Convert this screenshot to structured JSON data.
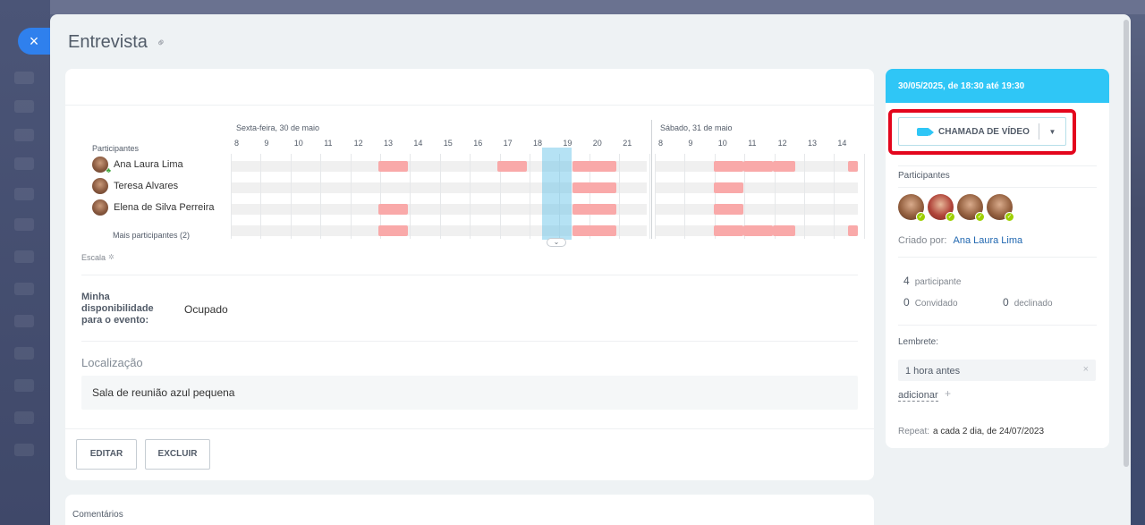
{
  "window": {
    "close_icon": "×"
  },
  "header": {
    "title": "Entrevista",
    "link_icon": "link-icon"
  },
  "planner": {
    "participants_label": "Participantes",
    "days": [
      {
        "label": "Sexta-feira, 30 de maio",
        "hours": [
          "8",
          "9",
          "10",
          "11",
          "12",
          "13",
          "14",
          "15",
          "16",
          "17",
          "18",
          "19",
          "20",
          "21"
        ]
      },
      {
        "label": "Sábado, 31 de maio",
        "hours": [
          "8",
          "9",
          "10",
          "11",
          "12",
          "13",
          "14"
        ]
      }
    ],
    "participants": [
      {
        "name": "Ana Laura Lima"
      },
      {
        "name": "Teresa Alvares"
      },
      {
        "name": "Elena de Silva Perreira"
      }
    ],
    "more_participants": "Mais participantes (2)",
    "scale_label": "Escala"
  },
  "availability": {
    "label": "Minha disponibilidade para o evento:",
    "value": "Ocupado"
  },
  "location": {
    "label": "Localização",
    "value": "Sala de reunião azul pequena"
  },
  "actions": {
    "edit": "EDITAR",
    "delete": "EXCLUIR"
  },
  "comments": {
    "label": "Comentários"
  },
  "sidebar": {
    "datetime": "30/05/2025, de 18:30 até 19:30",
    "video_call": "CHAMADA DE VÍDEO",
    "participants_label": "Participantes",
    "created_by_label": "Criado por:",
    "created_by": "Ana Laura Lima",
    "participant_count": "4",
    "participant_word": "participante",
    "invited_count": "0",
    "invited_word": "Convidado",
    "declined_count": "0",
    "declined_word": "declinado",
    "reminder_label": "Lembrete:",
    "reminder_value": "1 hora antes",
    "add_link": "adicionar",
    "repeat_label": "Repeat:",
    "repeat_value": "a cada 2 dia, de 24/07/2023"
  },
  "colors": {
    "accent": "#2fc6f6",
    "busy": "#f9a9a9",
    "selection": "#a6dcf0",
    "highlight": "#e3061d"
  }
}
